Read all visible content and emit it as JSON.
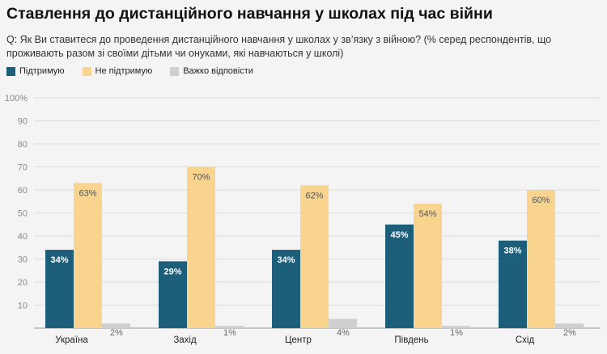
{
  "chart_data": {
    "type": "bar",
    "title": "Ставлення до дистанційного навчання у школах під час війни",
    "subtitle": "Q: Як Ви ставитеся до проведення дистанційного навчання у школах у зв’язку з війною? (% серед респондентів, що проживають разом зі своїми дітьми чи онуками, які навчаються у школі)",
    "categories": [
      "Україна",
      "Захід",
      "Центр",
      "Південь",
      "Схід"
    ],
    "series": [
      {
        "name": "Підтримую",
        "color": "#1d5e7a",
        "values": [
          34,
          29,
          34,
          45,
          38
        ]
      },
      {
        "name": "Не підтримую",
        "color": "#f8d48e",
        "values": [
          63,
          70,
          62,
          54,
          60
        ]
      },
      {
        "name": "Важко відповісти",
        "color": "#cfcfcf",
        "values": [
          2,
          1,
          4,
          1,
          2
        ]
      }
    ],
    "ylim": [
      0,
      100
    ],
    "yticks": [
      "",
      "10",
      "20",
      "30",
      "40",
      "50",
      "60",
      "70",
      "80",
      "90",
      "100%"
    ],
    "grid": true,
    "legend": "top-left"
  }
}
